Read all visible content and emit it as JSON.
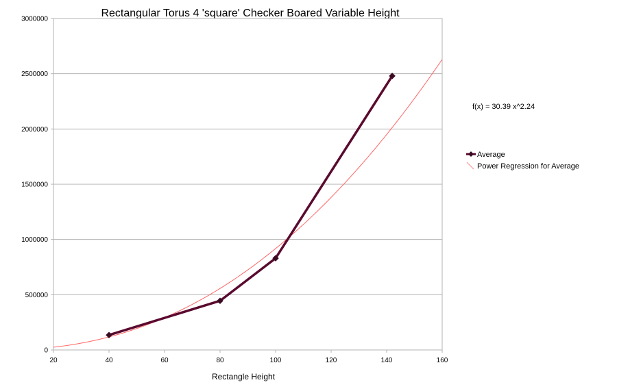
{
  "chart_data": {
    "type": "line",
    "title": "Rectangular Torus 4 'square' Checker Boared Variable Height",
    "xlabel": "Rectangle Height",
    "ylabel": "",
    "xlim": [
      20,
      160
    ],
    "ylim": [
      0,
      3000000
    ],
    "x_ticks": [
      20,
      40,
      60,
      80,
      100,
      120,
      140,
      160
    ],
    "y_ticks": [
      0,
      500000,
      1000000,
      1500000,
      2000000,
      2500000,
      3000000
    ],
    "x_tick_labels": [
      "20",
      "40",
      "60",
      "80",
      "100",
      "120",
      "140",
      "160"
    ],
    "y_tick_labels": [
      "0",
      "500000",
      "1000000",
      "1500000",
      "2000000",
      "2500000",
      "3000000"
    ],
    "grid": "horizontal",
    "legend_position": "right",
    "series": [
      {
        "name": "Average",
        "color": "#5a0a2e",
        "marker": "diamond",
        "x": [
          40,
          80,
          100,
          142
        ],
        "y": [
          135000,
          445000,
          830000,
          2480000
        ]
      }
    ],
    "regression": {
      "name": "Power Regression for Average",
      "color": "#ff6666",
      "coefficient": 30.39,
      "exponent": 2.24,
      "x_range": [
        20,
        160
      ],
      "formula_text": "f(x) = 30.39 x^2.24"
    }
  }
}
